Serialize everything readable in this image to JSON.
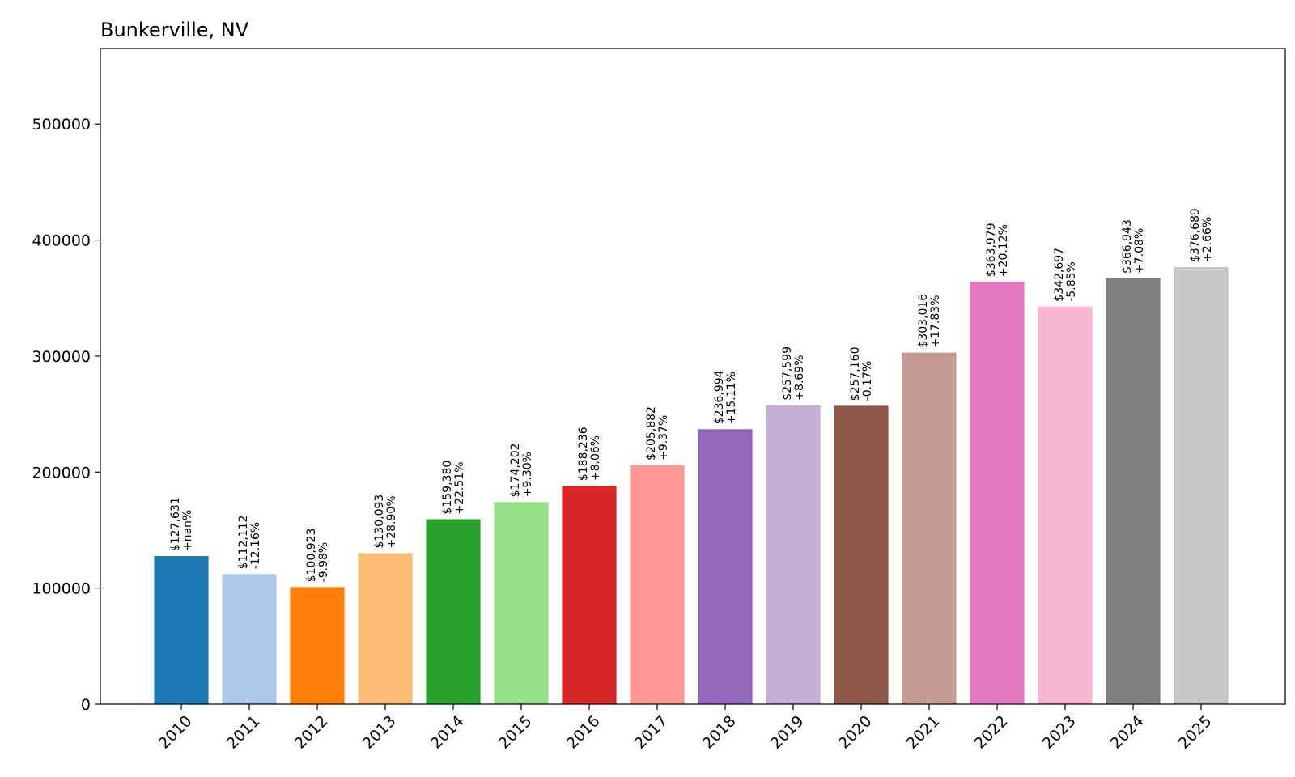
{
  "chart_data": {
    "type": "bar",
    "title": "Bunkerville, NV",
    "xlabel": "",
    "ylabel": "",
    "categories": [
      "2010",
      "2011",
      "2012",
      "2013",
      "2014",
      "2015",
      "2016",
      "2017",
      "2018",
      "2019",
      "2020",
      "2021",
      "2022",
      "2023",
      "2024",
      "2025"
    ],
    "values": [
      127631,
      112112,
      100923,
      130093,
      159380,
      174202,
      188236,
      205882,
      236994,
      257599,
      257160,
      303016,
      363979,
      342697,
      366943,
      376689
    ],
    "value_labels": [
      "$127,631",
      "$112,112",
      "$100,923",
      "$130,093",
      "$159,380",
      "$174,202",
      "$188,236",
      "$205,882",
      "$236,994",
      "$257,599",
      "$257,160",
      "$303,016",
      "$363,979",
      "$342,697",
      "$366,943",
      "$376,689"
    ],
    "change_labels": [
      "+nan%",
      "-12.16%",
      "-9.98%",
      "+28.90%",
      "+22.51%",
      "+9.30%",
      "+8.06%",
      "+9.37%",
      "+15.11%",
      "+8.69%",
      "-0.17%",
      "+17.83%",
      "+20.12%",
      "-5.85%",
      "+7.08%",
      "+2.66%"
    ],
    "colors": [
      "#1f77b4",
      "#aec7e8",
      "#ff7f0e",
      "#ffbb78",
      "#2ca02c",
      "#98df8a",
      "#d62728",
      "#ff9896",
      "#9467bd",
      "#c5b0d5",
      "#8c564b",
      "#c49c94",
      "#e377c2",
      "#f7b6d2",
      "#7f7f7f",
      "#c7c7c7"
    ],
    "ylim": [
      0,
      565000
    ],
    "yticks": [
      0,
      100000,
      200000,
      300000,
      400000,
      500000
    ],
    "ytick_labels": [
      "0",
      "100000",
      "200000",
      "300000",
      "400000",
      "500000"
    ],
    "grid": false,
    "legend": "none"
  }
}
